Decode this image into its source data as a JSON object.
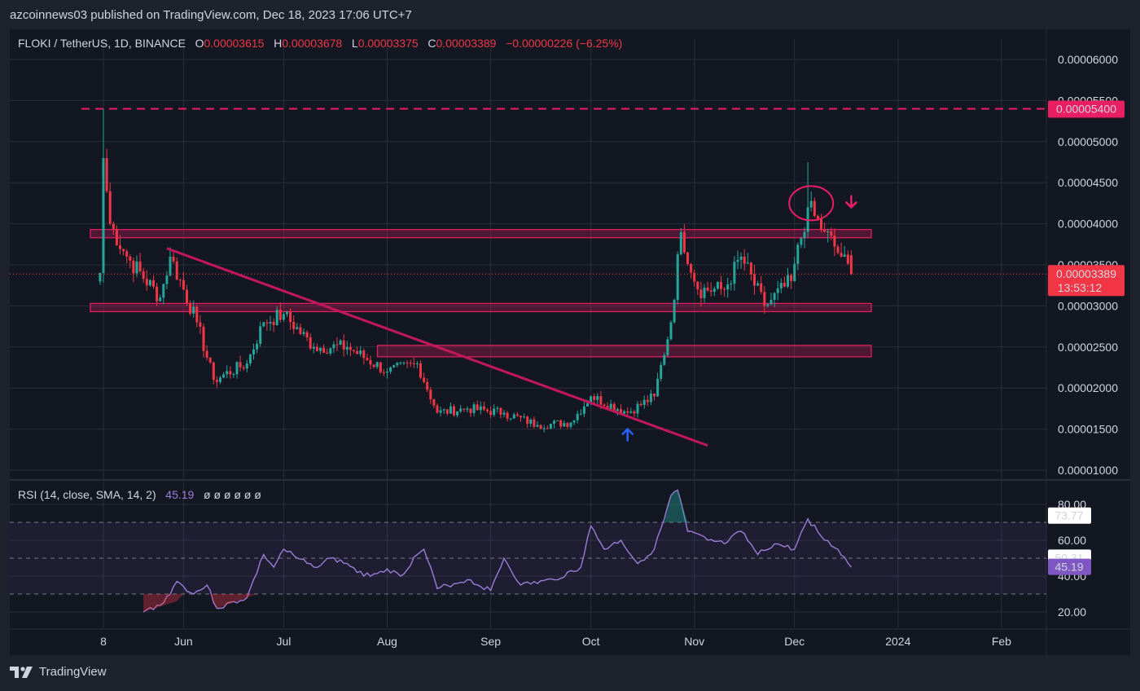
{
  "header": {
    "published": "azcoinnews03 published on TradingView.com, Dec 18, 2023 17:06 UTC+7"
  },
  "legend": {
    "symbol": "FLOKI / TetherUS, 1D, BINANCE",
    "o_label": "O",
    "o_value": "0.00003615",
    "h_label": "H",
    "h_value": "0.00003678",
    "l_label": "L",
    "l_value": "0.00003375",
    "c_label": "C",
    "c_value": "0.00003389",
    "change": "−0.00000226 (−6.25%)"
  },
  "rsi_legend": {
    "label": "RSI (14, close, SMA, 14, 2)",
    "value": "45.19",
    "placeholders": "ø ø ø ø ø ø"
  },
  "brand": {
    "name": "TradingView"
  },
  "colors": {
    "up": "#26a69a",
    "down": "#f23645",
    "magenta": "#e91e63",
    "rsi": "#9c7dd6",
    "bg": "#131722",
    "grid": "#2a2e39"
  },
  "chart_data": [
    {
      "type": "candlestick",
      "title": "FLOKI / TetherUS, 1D, BINANCE",
      "y_ticks": [
        "0.00006000",
        "0.00005500",
        "0.00005000",
        "0.00004500",
        "0.00004000",
        "0.00003500",
        "0.00003000",
        "0.00002500",
        "0.00002000",
        "0.00001500",
        "0.00001000"
      ],
      "x_ticks": [
        "8",
        "Jun",
        "Jul",
        "Aug",
        "Sep",
        "Oct",
        "Nov",
        "Dec",
        "2024",
        "Feb"
      ],
      "ylim": [
        1e-05,
        6e-05
      ],
      "price_labels": {
        "resistance": "0.00005400",
        "last": "0.00003389",
        "countdown": "13:53:12"
      },
      "key_points": [
        {
          "date": "2023-05-07",
          "close": 3.4e-05
        },
        {
          "date": "2023-05-08",
          "high": 5.4e-05,
          "close": 4.8e-05
        },
        {
          "date": "2023-05-10",
          "close": 4e-05
        },
        {
          "date": "2023-05-15",
          "close": 3.6e-05
        },
        {
          "date": "2023-05-25",
          "close": 3.1e-05
        },
        {
          "date": "2023-05-28",
          "close": 3.6e-05
        },
        {
          "date": "2023-06-05",
          "close": 2.8e-05
        },
        {
          "date": "2023-06-10",
          "close": 2.1e-05
        },
        {
          "date": "2023-06-20",
          "close": 2.3e-05
        },
        {
          "date": "2023-06-25",
          "close": 2.8e-05
        },
        {
          "date": "2023-07-01",
          "close": 2.9e-05
        },
        {
          "date": "2023-07-10",
          "close": 2.5e-05
        },
        {
          "date": "2023-07-20",
          "close": 2.5e-05
        },
        {
          "date": "2023-08-01",
          "close": 2.2e-05
        },
        {
          "date": "2023-08-10",
          "close": 2.3e-05
        },
        {
          "date": "2023-08-16",
          "close": 1.7e-05
        },
        {
          "date": "2023-08-25",
          "close": 1.75e-05
        },
        {
          "date": "2023-09-05",
          "close": 1.7e-05
        },
        {
          "date": "2023-09-15",
          "close": 1.55e-05
        },
        {
          "date": "2023-09-25",
          "close": 1.58e-05
        },
        {
          "date": "2023-10-01",
          "close": 1.9e-05
        },
        {
          "date": "2023-10-12",
          "close": 1.7e-05
        },
        {
          "date": "2023-10-20",
          "close": 1.9e-05
        },
        {
          "date": "2023-10-25",
          "close": 2.8e-05
        },
        {
          "date": "2023-10-28",
          "close": 3.9e-05
        },
        {
          "date": "2023-11-02",
          "close": 3.2e-05
        },
        {
          "date": "2023-11-10",
          "close": 3.2e-05
        },
        {
          "date": "2023-11-15",
          "close": 3.6e-05
        },
        {
          "date": "2023-11-22",
          "close": 3e-05
        },
        {
          "date": "2023-11-30",
          "close": 3.3e-05
        },
        {
          "date": "2023-12-05",
          "high": 4.75e-05,
          "close": 4.2e-05
        },
        {
          "date": "2023-12-10",
          "close": 3.9e-05
        },
        {
          "date": "2023-12-15",
          "close": 3.6e-05
        },
        {
          "date": "2023-12-18",
          "open": 3.615e-05,
          "high": 3.678e-05,
          "low": 3.375e-05,
          "close": 3.389e-05
        }
      ],
      "zones": [
        {
          "from": "2023-05-07",
          "to": "2023-12-24",
          "low": 3.83e-05,
          "high": 3.93e-05
        },
        {
          "from": "2023-05-07",
          "to": "2023-12-24",
          "low": 2.93e-05,
          "high": 3.03e-05
        },
        {
          "from": "2023-08-01",
          "to": "2023-12-24",
          "low": 2.38e-05,
          "high": 2.52e-05
        }
      ],
      "resistance_line": 5.4e-05,
      "trendline": {
        "from": {
          "date": "2023-05-27",
          "price": 3.7e-05
        },
        "to": {
          "date": "2023-11-05",
          "price": 1.3e-05
        }
      }
    },
    {
      "type": "line",
      "title": "RSI (14, close, SMA, 14, 2)",
      "y_ticks": [
        "80.00",
        "60.00",
        "40.00",
        "20.00"
      ],
      "levels": [
        70,
        50,
        30
      ],
      "value_labels": [
        "73.77",
        "50.31",
        "45.19"
      ],
      "ylim": [
        10,
        90
      ],
      "series": [
        {
          "values": [
            {
              "date": "2023-05-20",
              "value": 20
            },
            {
              "date": "2023-05-26",
              "value": 25
            },
            {
              "date": "2023-05-30",
              "value": 37
            },
            {
              "date": "2023-06-04",
              "value": 30
            },
            {
              "date": "2023-06-08",
              "value": 35
            },
            {
              "date": "2023-06-11",
              "value": 22
            },
            {
              "date": "2023-06-20",
              "value": 28
            },
            {
              "date": "2023-06-25",
              "value": 52
            },
            {
              "date": "2023-06-28",
              "value": 45
            },
            {
              "date": "2023-07-01",
              "value": 55
            },
            {
              "date": "2023-07-05",
              "value": 50
            },
            {
              "date": "2023-07-10",
              "value": 45
            },
            {
              "date": "2023-07-15",
              "value": 50
            },
            {
              "date": "2023-07-20",
              "value": 47
            },
            {
              "date": "2023-07-25",
              "value": 40
            },
            {
              "date": "2023-08-01",
              "value": 44
            },
            {
              "date": "2023-08-05",
              "value": 40
            },
            {
              "date": "2023-08-10",
              "value": 52
            },
            {
              "date": "2023-08-12",
              "value": 55
            },
            {
              "date": "2023-08-16",
              "value": 33
            },
            {
              "date": "2023-08-25",
              "value": 38
            },
            {
              "date": "2023-09-01",
              "value": 32
            },
            {
              "date": "2023-09-05",
              "value": 50
            },
            {
              "date": "2023-09-10",
              "value": 35
            },
            {
              "date": "2023-09-20",
              "value": 38
            },
            {
              "date": "2023-09-28",
              "value": 45
            },
            {
              "date": "2023-10-01",
              "value": 68
            },
            {
              "date": "2023-10-05",
              "value": 55
            },
            {
              "date": "2023-10-10",
              "value": 60
            },
            {
              "date": "2023-10-15",
              "value": 47
            },
            {
              "date": "2023-10-20",
              "value": 55
            },
            {
              "date": "2023-10-23",
              "value": 72
            },
            {
              "date": "2023-10-25",
              "value": 85
            },
            {
              "date": "2023-10-27",
              "value": 88
            },
            {
              "date": "2023-10-30",
              "value": 65
            },
            {
              "date": "2023-11-05",
              "value": 60
            },
            {
              "date": "2023-11-10",
              "value": 58
            },
            {
              "date": "2023-11-15",
              "value": 65
            },
            {
              "date": "2023-11-20",
              "value": 52
            },
            {
              "date": "2023-11-25",
              "value": 58
            },
            {
              "date": "2023-12-01",
              "value": 55
            },
            {
              "date": "2023-12-05",
              "value": 72
            },
            {
              "date": "2023-12-10",
              "value": 60
            },
            {
              "date": "2023-12-14",
              "value": 55
            },
            {
              "date": "2023-12-18",
              "value": 45
            }
          ]
        }
      ]
    }
  ]
}
